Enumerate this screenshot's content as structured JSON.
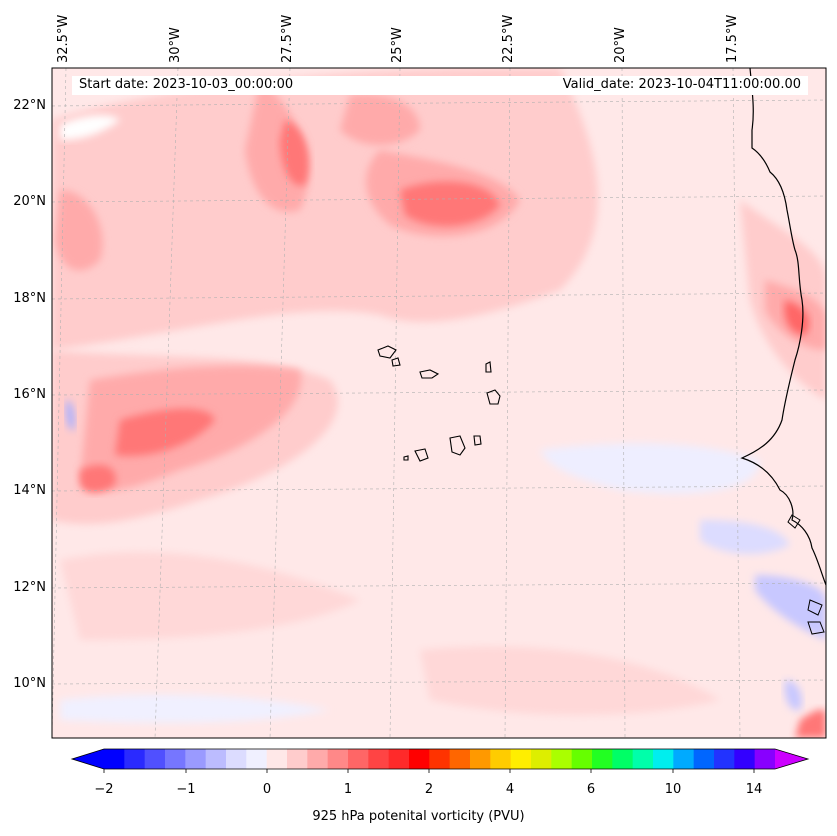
{
  "map": {
    "lon_labels": [
      "32.5°W",
      "30°W",
      "27.5°W",
      "25°W",
      "22.5°W",
      "20°W",
      "17.5°W"
    ],
    "lat_labels": [
      "22°N",
      "20°N",
      "18°N",
      "16°N",
      "14°N",
      "12°N",
      "10°N"
    ],
    "start_date": "Start date: 2023-10-03_00:00:00",
    "valid_date": "Valid_date: 2023-10-04T11:00:00.00",
    "background_color": "#ffe8e8"
  },
  "colorbar": {
    "title": "925 hPa potenital vorticity (PVU)",
    "tick_labels": [
      "−2",
      "−1",
      "0",
      "1",
      "2",
      "4",
      "6",
      "10",
      "14"
    ],
    "colors": [
      "#0000ff",
      "#2a2aff",
      "#5050ff",
      "#7676ff",
      "#9a9aff",
      "#bcbcff",
      "#dcdcff",
      "#f0f0ff",
      "#ffe8e8",
      "#ffcccc",
      "#ffaaaa",
      "#ff8888",
      "#ff6666",
      "#ff4444",
      "#ff2a2a",
      "#ff0000",
      "#ff3300",
      "#ff6600",
      "#ff9900",
      "#ffcc00",
      "#ffee00",
      "#ddee00",
      "#aaff00",
      "#66ff00",
      "#22ff22",
      "#00ff66",
      "#00ffaa",
      "#00eeee",
      "#00aaff",
      "#0066ff",
      "#2233ff",
      "#3300ff",
      "#8800ff"
    ],
    "extend_min_color": "#0000ff",
    "extend_max_color": "#cc00ff"
  }
}
